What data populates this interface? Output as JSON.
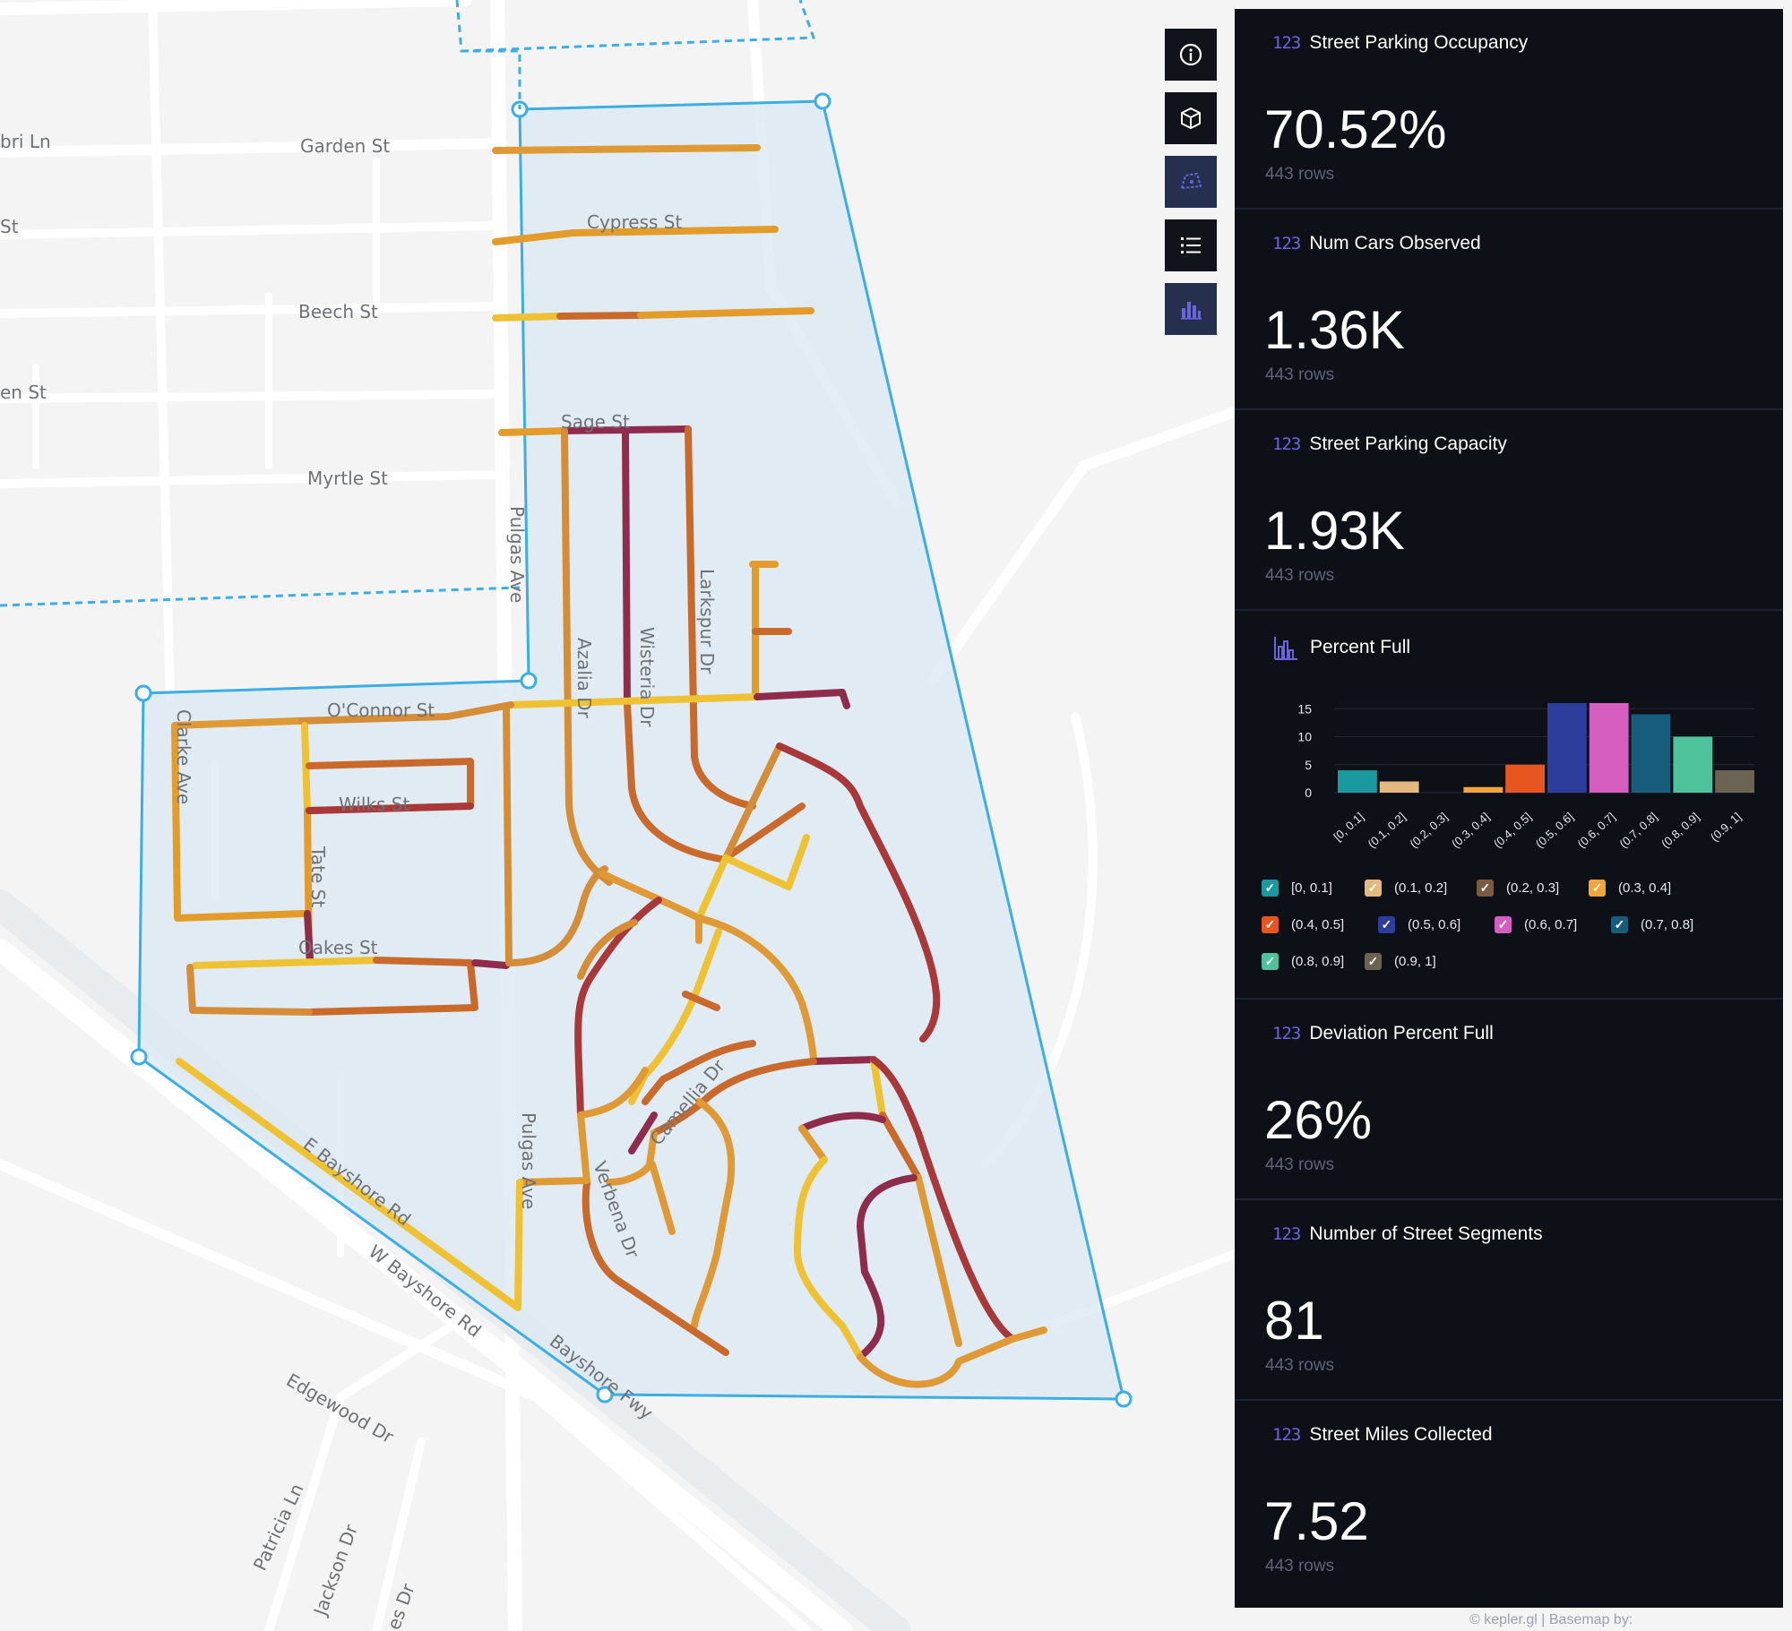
{
  "map": {
    "street_labels": [
      {
        "id": "bri-ln",
        "text": "bri Ln"
      },
      {
        "id": "garden-st",
        "text": "Garden St"
      },
      {
        "id": "st-frag",
        "text": "St"
      },
      {
        "id": "cypress-st",
        "text": "Cypress St"
      },
      {
        "id": "beech-st",
        "text": "Beech St"
      },
      {
        "id": "en-st",
        "text": "en St"
      },
      {
        "id": "sage-st",
        "text": "Sage St"
      },
      {
        "id": "myrtle-st",
        "text": "Myrtle St"
      },
      {
        "id": "pulgas-ave-1",
        "text": "Pulgas Ave"
      },
      {
        "id": "larkspur-dr",
        "text": "Larkspur Dr"
      },
      {
        "id": "azalia-dr",
        "text": "Azalia Dr"
      },
      {
        "id": "wisteria-dr",
        "text": "Wisteria Dr"
      },
      {
        "id": "oconnor-st",
        "text": "O'Connor St"
      },
      {
        "id": "clarke-ave",
        "text": "Clarke Ave"
      },
      {
        "id": "wilks-st",
        "text": "Wilks St"
      },
      {
        "id": "tate-st",
        "text": "Tate St"
      },
      {
        "id": "oakes-st",
        "text": "Oakes St"
      },
      {
        "id": "camellia-dr",
        "text": "Camellia Dr"
      },
      {
        "id": "pulgas-ave-2",
        "text": "Pulgas Ave"
      },
      {
        "id": "verbena-dr",
        "text": "Verbena Dr"
      },
      {
        "id": "e-bayshore-rd",
        "text": "E Bayshore Rd"
      },
      {
        "id": "w-bayshore-rd",
        "text": "W Bayshore Rd"
      },
      {
        "id": "bayshore-fwy",
        "text": "Bayshore Fwy"
      },
      {
        "id": "edgewood-dr",
        "text": "Edgewood Dr"
      },
      {
        "id": "patricia-ln",
        "text": "Patricia Ln"
      },
      {
        "id": "jackson-dr",
        "text": "Jackson Dr"
      },
      {
        "id": "es-dr",
        "text": "es Dr"
      }
    ],
    "polygon_color": "#3aaee5",
    "fill_color": "#dbe8f3"
  },
  "toolbar": {
    "buttons": [
      {
        "id": "info",
        "icon": "info-icon"
      },
      {
        "id": "cube",
        "icon": "cube-icon"
      },
      {
        "id": "draw",
        "icon": "draw-polygon-icon"
      },
      {
        "id": "list",
        "icon": "list-icon"
      },
      {
        "id": "chart",
        "icon": "bar-chart-icon"
      }
    ]
  },
  "panel": {
    "cards": [
      {
        "title": "Street Parking Occupancy",
        "value": "70.52%",
        "rows": "443 rows"
      },
      {
        "title": "Num Cars Observed",
        "value": "1.36K",
        "rows": "443 rows"
      },
      {
        "title": "Street Parking Capacity",
        "value": "1.93K",
        "rows": "443 rows"
      }
    ],
    "cards_after": [
      {
        "title": "Deviation Percent Full",
        "value": "26%",
        "rows": "443 rows"
      },
      {
        "title": "Number of Street Segments",
        "value": "81",
        "rows": "443 rows"
      },
      {
        "title": "Street Miles Collected",
        "value": "7.52",
        "rows": "443 rows"
      }
    ],
    "icon_text": "123"
  },
  "chart_data": {
    "type": "bar",
    "title": "Percent Full",
    "categories": [
      "[0, 0.1]",
      "(0.1, 0.2]",
      "(0.2, 0.3]",
      "(0.3, 0.4]",
      "(0.4, 0.5]",
      "(0.5, 0.6]",
      "(0.6, 0.7]",
      "(0.7, 0.8]",
      "(0.8, 0.9]",
      "(0.9, 1]"
    ],
    "values": [
      4,
      2,
      0,
      1,
      5,
      16,
      16,
      14,
      10,
      4
    ],
    "colors": [
      "#1a9aa0",
      "#e3b97d",
      "#7c5a40",
      "#f2a63a",
      "#e8561f",
      "#2c3d9c",
      "#d55ec0",
      "#175c7a",
      "#4ec29b",
      "#6b6452"
    ],
    "yticks": [
      0,
      5,
      10,
      15
    ],
    "ylim": [
      0,
      16
    ],
    "legend": [
      "[0, 0.1]",
      "(0.1, 0.2]",
      "(0.2, 0.3]",
      "(0.3, 0.4]",
      "(0.4, 0.5]",
      "(0.5, 0.6]",
      "(0.6, 0.7]",
      "(0.7, 0.8]",
      "(0.8, 0.9]",
      "(0.9, 1]"
    ],
    "grid": true,
    "legend_placement": "bottom"
  },
  "attribution": "© kepler.gl | Basemap by:"
}
